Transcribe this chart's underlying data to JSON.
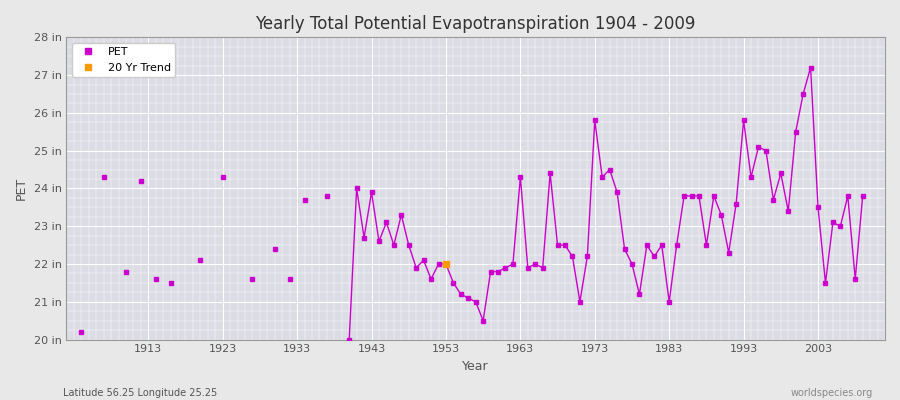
{
  "title": "Yearly Total Potential Evapotranspiration 1904 - 2009",
  "xlabel": "Year",
  "ylabel": "PET",
  "footnote_left": "Latitude 56.25 Longitude 25.25",
  "footnote_right": "worldspecies.org",
  "ylim": [
    20,
    28
  ],
  "yticks": [
    20,
    21,
    22,
    23,
    24,
    25,
    26,
    27,
    28
  ],
  "ytick_labels": [
    "20 in",
    "21 in",
    "22 in",
    "23 in",
    "24 in",
    "25 in",
    "26 in",
    "27 in",
    "28 in"
  ],
  "xticks": [
    1913,
    1923,
    1933,
    1943,
    1953,
    1963,
    1973,
    1983,
    1993,
    2003
  ],
  "bg_color": "#e8e8e8",
  "plot_bg_color": "#dcdce4",
  "grid_color": "#ffffff",
  "line_color": "#cc00cc",
  "trend_color": "#ff9900",
  "legend_labels": [
    "PET",
    "20 Yr Trend"
  ],
  "legend_colors": [
    "#cc00cc",
    "#ff9900"
  ],
  "years": [
    1904,
    1907,
    1910,
    1912,
    1914,
    1916,
    1920,
    1923,
    1927,
    1930,
    1932,
    1934,
    1937,
    1940,
    1941,
    1942,
    1943,
    1944,
    1945,
    1946,
    1947,
    1948,
    1949,
    1950,
    1951,
    1952,
    1953,
    1954,
    1955,
    1956,
    1957,
    1958,
    1959,
    1960,
    1961,
    1962,
    1963,
    1964,
    1965,
    1966,
    1967,
    1968,
    1969,
    1970,
    1971,
    1972,
    1973,
    1974,
    1975,
    1976,
    1977,
    1978,
    1979,
    1980,
    1981,
    1982,
    1983,
    1984,
    1985,
    1986,
    1987,
    1988,
    1989,
    1990,
    1991,
    1992,
    1993,
    1994,
    1995,
    1996,
    1997,
    1998,
    1999,
    2000,
    2001,
    2002,
    2003,
    2004,
    2005,
    2006,
    2007,
    2008,
    2009
  ],
  "values": [
    20.2,
    24.3,
    21.8,
    24.2,
    21.6,
    21.5,
    22.1,
    24.3,
    21.6,
    22.4,
    21.6,
    23.7,
    23.8,
    20.0,
    24.0,
    22.7,
    23.9,
    22.6,
    23.1,
    22.5,
    23.3,
    22.5,
    21.9,
    22.1,
    21.6,
    22.0,
    22.0,
    21.5,
    21.2,
    21.1,
    21.0,
    20.5,
    21.8,
    21.8,
    21.9,
    22.0,
    24.3,
    21.9,
    22.0,
    21.9,
    24.4,
    22.5,
    22.5,
    22.2,
    21.0,
    22.2,
    25.8,
    24.3,
    24.5,
    23.9,
    22.4,
    22.0,
    21.2,
    22.5,
    22.2,
    22.5,
    21.0,
    22.5,
    23.8,
    23.8,
    23.8,
    22.5,
    23.8,
    23.3,
    22.3,
    23.6,
    25.8,
    24.3,
    25.1,
    25.0,
    23.7,
    24.4,
    23.4,
    25.5,
    26.5,
    27.2,
    23.5,
    21.5,
    23.1,
    23.0,
    23.8,
    21.6,
    23.8
  ],
  "trend_year": 1953,
  "trend_value": 22.0,
  "xlim": [
    1902,
    2012
  ]
}
